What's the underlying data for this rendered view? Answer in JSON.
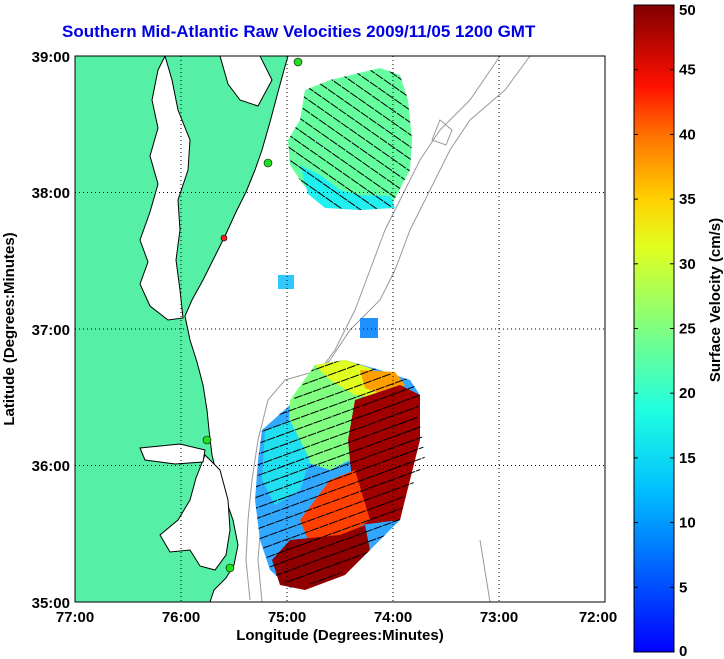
{
  "title": "Southern Mid-Atlantic Raw Velocities 2009/11/05 1200 GMT",
  "axes": {
    "xlabel": "Longitude (Degrees:Minutes)",
    "ylabel": "Latitude (Degrees:Minutes)",
    "xticks": [
      "77:00",
      "76:00",
      "75:00",
      "74:00",
      "73:00",
      "72:00"
    ],
    "yticks": [
      "39:00",
      "38:00",
      "37:00",
      "36:00",
      "35:00"
    ]
  },
  "colorbar": {
    "label": "Surface Velocity (cm/s)",
    "ticks": [
      "0",
      "5",
      "10",
      "15",
      "20",
      "25",
      "30",
      "35",
      "40",
      "45",
      "50"
    ],
    "min": 0,
    "max": 50
  },
  "colors": {
    "land": "#55f0a5",
    "coast": "#000000",
    "title": "#0000e6",
    "contour": "#999999",
    "station_active": "#22dd22",
    "station_inactive": "#ee2222"
  }
}
